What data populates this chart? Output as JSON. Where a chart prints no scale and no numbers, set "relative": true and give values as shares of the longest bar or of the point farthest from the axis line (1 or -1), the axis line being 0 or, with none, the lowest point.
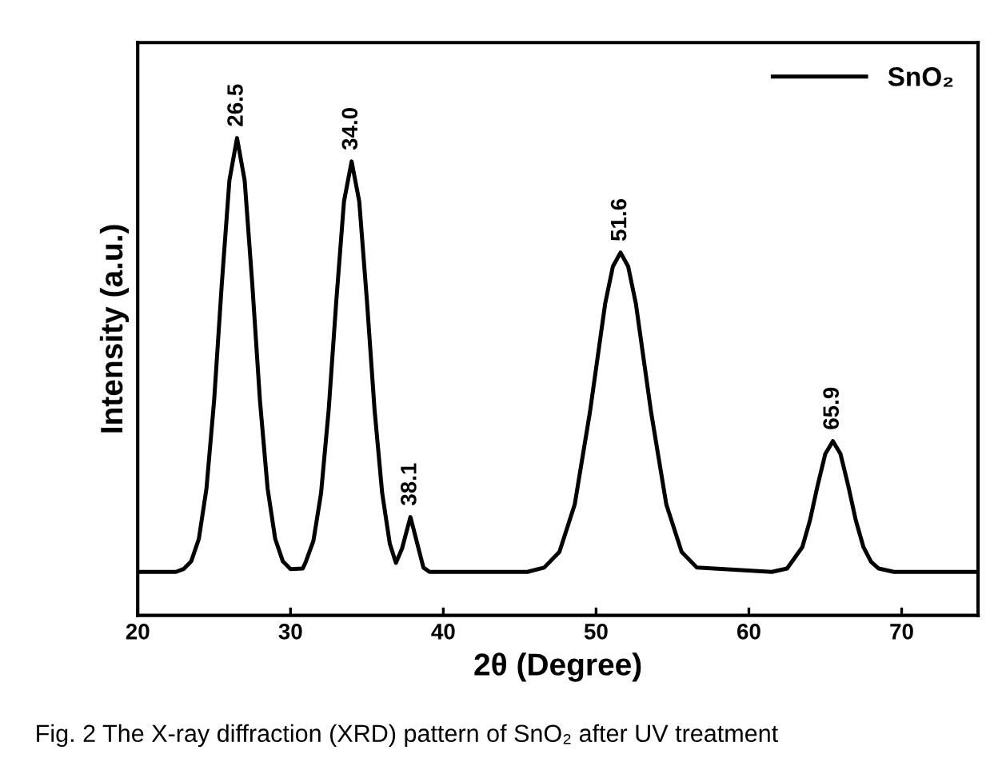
{
  "chart_data": {
    "type": "line",
    "xlabel": "2θ (Degree)",
    "ylabel": "Intensity (a.u.)",
    "xlim": [
      20,
      75
    ],
    "xticks": [
      20,
      30,
      40,
      50,
      60,
      70
    ],
    "relative": true,
    "tick_labels": "x",
    "grid": false,
    "legend": "top right",
    "marker": "none",
    "line_style": "solid",
    "series": [
      {
        "name": "SnO₂",
        "color": "#000000",
        "x": [
          20,
          22.5,
          23.0,
          23.5,
          24.0,
          24.5,
          25.0,
          25.5,
          26.0,
          26.5,
          27.0,
          27.5,
          28.0,
          28.5,
          29.0,
          29.5,
          30.0,
          30.8,
          31.0,
          31.5,
          32.0,
          32.5,
          33.0,
          33.5,
          34.0,
          34.5,
          35.0,
          35.5,
          36.0,
          36.5,
          36.9,
          37.3,
          37.85,
          38.3,
          38.7,
          39.1,
          45.5,
          46.6,
          47.6,
          48.6,
          49.6,
          50.6,
          51.1,
          51.6,
          52.1,
          52.6,
          53.6,
          54.6,
          55.6,
          56.6,
          61.5,
          62.5,
          63.5,
          64.0,
          64.5,
          65.0,
          65.5,
          66.0,
          66.5,
          67.0,
          67.5,
          68.0,
          68.5,
          69.5,
          75
        ],
        "values": [
          0.091,
          0.091,
          0.097,
          0.113,
          0.16,
          0.266,
          0.45,
          0.693,
          0.911,
          1.0,
          0.911,
          0.693,
          0.45,
          0.266,
          0.16,
          0.113,
          0.097,
          0.098,
          0.112,
          0.156,
          0.256,
          0.431,
          0.66,
          0.867,
          0.951,
          0.867,
          0.66,
          0.431,
          0.256,
          0.15,
          0.11,
          0.14,
          0.206,
          0.15,
          0.1,
          0.091,
          0.091,
          0.1,
          0.133,
          0.232,
          0.426,
          0.654,
          0.731,
          0.76,
          0.731,
          0.654,
          0.426,
          0.232,
          0.133,
          0.1,
          0.091,
          0.098,
          0.143,
          0.199,
          0.272,
          0.338,
          0.365,
          0.338,
          0.272,
          0.199,
          0.143,
          0.112,
          0.098,
          0.091,
          0.091
        ]
      }
    ],
    "annotations": [
      {
        "text": "26.5",
        "x": 26.5,
        "y": 1.0
      },
      {
        "text": "34.0",
        "x": 34.0,
        "y": 0.951
      },
      {
        "text": "38.1",
        "x": 37.85,
        "y": 0.206
      },
      {
        "text": "51.6",
        "x": 51.6,
        "y": 0.76
      },
      {
        "text": "65.9",
        "x": 65.5,
        "y": 0.365
      },
      "Fig. 2 The X-ray diffraction (XRD) pattern of SnO₂ after UV treatment"
    ]
  }
}
